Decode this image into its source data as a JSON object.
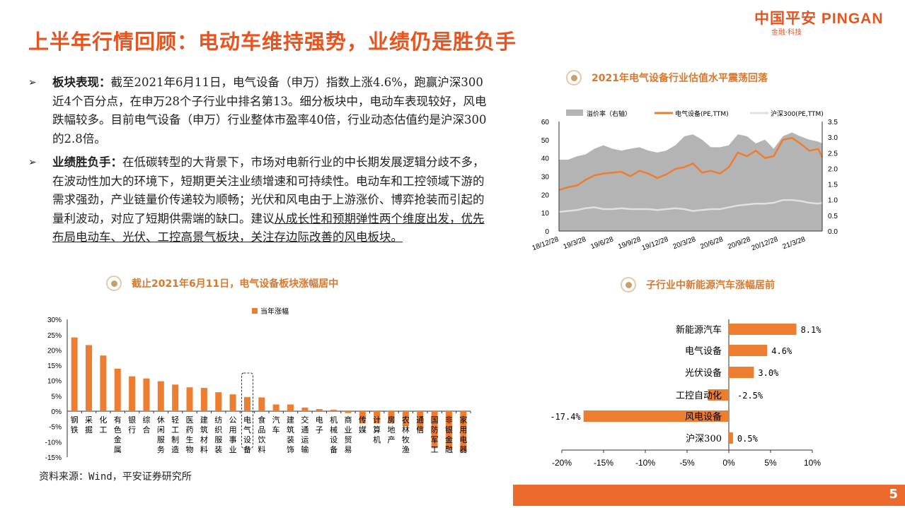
{
  "title": "上半年行情回顾：电动车维持强势，业绩仍是胜负手",
  "logo": {
    "name": "中国平安 PINGAN",
    "tagline": "金融·科技"
  },
  "paragraphs": [
    {
      "heading": "板块表现：",
      "text": "截至2021年6月11日，电气设备（申万）指数上涨4.6%，跑赢沪深300近4个百分点，在申万28个子行业中排名第13。细分板块中，电动车表现较好，风电跌幅较多。目前电气设备（申万）行业整体市盈率40倍，行业动态估值约是沪深300的2.8倍。",
      "underlined": ""
    },
    {
      "heading": "业绩胜负手：",
      "text": "在低碳转型的大背景下，市场对电新行业的中长期发展逻辑分歧不多，在波动性加大的环境下，短期更关注业绩增速和可持续性。电动车和工控领域下游的需求强劲，产业链量价传递较为顺畅；光伏和风电由于上游涨价、博弈抢装而引起的量利波动，对应了短期供需端的缺口。建议",
      "underlined": "从成长性和预期弹性两个维度出发，优先布局电动车、光伏、工控高景气板块，关注存边际改善的风电板块。"
    }
  ],
  "section_titles": {
    "left": "截止2021年6月11日，电气设备板块涨幅居中",
    "right_top": "2021年电气设备行业估值水平震荡回落",
    "right_bottom": "子行业中新能源汽车涨幅居前"
  },
  "source": "资料来源：Wind，平安证券研究所",
  "page_number": "5",
  "colors": {
    "accent": "#e8541f",
    "bar": "#ed7d31",
    "area": "#b4b4b4",
    "hs300": "#e0e0e0",
    "footer": "#ec6a2c"
  },
  "chart_data": [
    {
      "type": "bar",
      "legend": "当年涨幅",
      "legend_position": "top-right",
      "categories": [
        "钢铁",
        "采掘",
        "化工",
        "有色金属",
        "银行",
        "综合",
        "休闲服务",
        "轻工制造",
        "医药生物",
        "建筑材料",
        "纺织服装",
        "公用事业",
        "电气设备",
        "食品饮料",
        "汽车",
        "建筑装饰",
        "交通运输",
        "电子",
        "机械设备",
        "商业贸易",
        "传媒",
        "计算机",
        "房地产",
        "农林牧渔",
        "通信",
        "国防军工",
        "非银金融",
        "家用电器"
      ],
      "values": [
        24.1,
        21.6,
        18.2,
        13.9,
        11.4,
        10.7,
        9.8,
        8.7,
        7.8,
        7.6,
        6.2,
        5.5,
        4.6,
        4.5,
        2.2,
        2.2,
        1.2,
        0.7,
        0.5,
        -0.6,
        -4.0,
        -4.0,
        -4.0,
        -5.0,
        -6.4,
        -12.1,
        -12.3,
        -13.2
      ],
      "highlight": "电气设备",
      "yticks": [
        "30%",
        "25%",
        "20%",
        "15%",
        "10%",
        "5%",
        "0%",
        "-5%",
        "-10%",
        "-15%"
      ],
      "ylim": [
        -15,
        30
      ]
    },
    {
      "type": "line",
      "legend_position": "top",
      "x": [
        "2018-12-28",
        "2019-01-28",
        "2019-02-28",
        "2019-03-28",
        "2019-04-28",
        "2019-05-28",
        "2019-06-28",
        "2019-07-28",
        "2019-08-28",
        "2019-09-28",
        "2019-10-28",
        "2019-11-28",
        "2019-12-28",
        "2020-01-28",
        "2020-02-28",
        "2020-03-28",
        "2020-04-28",
        "2020-05-28",
        "2020-06-28",
        "2020-07-28",
        "2020-08-28",
        "2020-09-28",
        "2020-10-28",
        "2020-11-28",
        "2020-12-28",
        "2021-01-28",
        "2021-02-28",
        "2021-03-28",
        "2021-04-28",
        "2021-05-28",
        "2021-06-11"
      ],
      "xticks": [
        "18/12/28",
        "19/3/28",
        "19/6/28",
        "19/9/28",
        "19/12/28",
        "20/3/28",
        "20/6/28",
        "20/9/28",
        "20/12/28",
        "21/3/28"
      ],
      "yticks_left": [
        "0",
        "10",
        "20",
        "30",
        "40",
        "50",
        "60"
      ],
      "ylim_left": [
        0,
        60
      ],
      "yticks_right": [
        "0.0",
        "0.5",
        "1.0",
        "1.5",
        "2.0",
        "2.5",
        "3.0",
        "3.5"
      ],
      "ylim_right": [
        0,
        3.5
      ],
      "series": [
        {
          "name": "溢价率（右轴）",
          "axis": "right",
          "style": "area",
          "values": [
            2.28,
            2.28,
            2.39,
            2.45,
            2.63,
            2.74,
            2.63,
            2.57,
            2.63,
            2.68,
            2.57,
            2.51,
            2.57,
            2.74,
            3.03,
            3.09,
            2.92,
            2.68,
            2.68,
            2.74,
            3.09,
            3.03,
            2.8,
            2.92,
            2.63,
            3.03,
            3.15,
            3.03,
            2.92,
            2.86,
            2.8
          ]
        },
        {
          "name": "电气设备(PE,TTM)",
          "axis": "left",
          "style": "line",
          "values": [
            22.5,
            24,
            25,
            28,
            30.5,
            31.5,
            32,
            32.5,
            30,
            33,
            31.5,
            29,
            31,
            34,
            35,
            37,
            32,
            33,
            31.5,
            35,
            43,
            41,
            44,
            40,
            41,
            50,
            51,
            48,
            44,
            45,
            40.5
          ]
        },
        {
          "name": "沪深300(PE,TTM)",
          "axis": "left",
          "style": "line",
          "values": [
            10.5,
            11,
            11.5,
            12.5,
            13,
            12,
            12,
            12.5,
            12,
            12,
            12,
            11.5,
            12,
            12.5,
            12,
            11,
            11.5,
            12,
            12,
            13,
            14,
            14.5,
            15,
            15,
            15.5,
            17,
            17,
            16.5,
            15.5,
            15,
            15.5
          ]
        }
      ]
    },
    {
      "type": "bar",
      "orientation": "horizontal",
      "categories": [
        "新能源汽车",
        "电气设备",
        "光伏设备",
        "工控自动化",
        "风电设备",
        "沪深300"
      ],
      "values": [
        8.1,
        4.6,
        3.0,
        -2.5,
        -17.4,
        0.5
      ],
      "labels": [
        "8.1%",
        "4.6%",
        "3.0%",
        "-2.5%",
        "-17.4%",
        "0.5%"
      ],
      "xticks": [
        "-20%",
        "-15%",
        "-10%",
        "-5%",
        "0%",
        "5%",
        "10%"
      ],
      "xlim": [
        -20,
        10
      ]
    }
  ]
}
